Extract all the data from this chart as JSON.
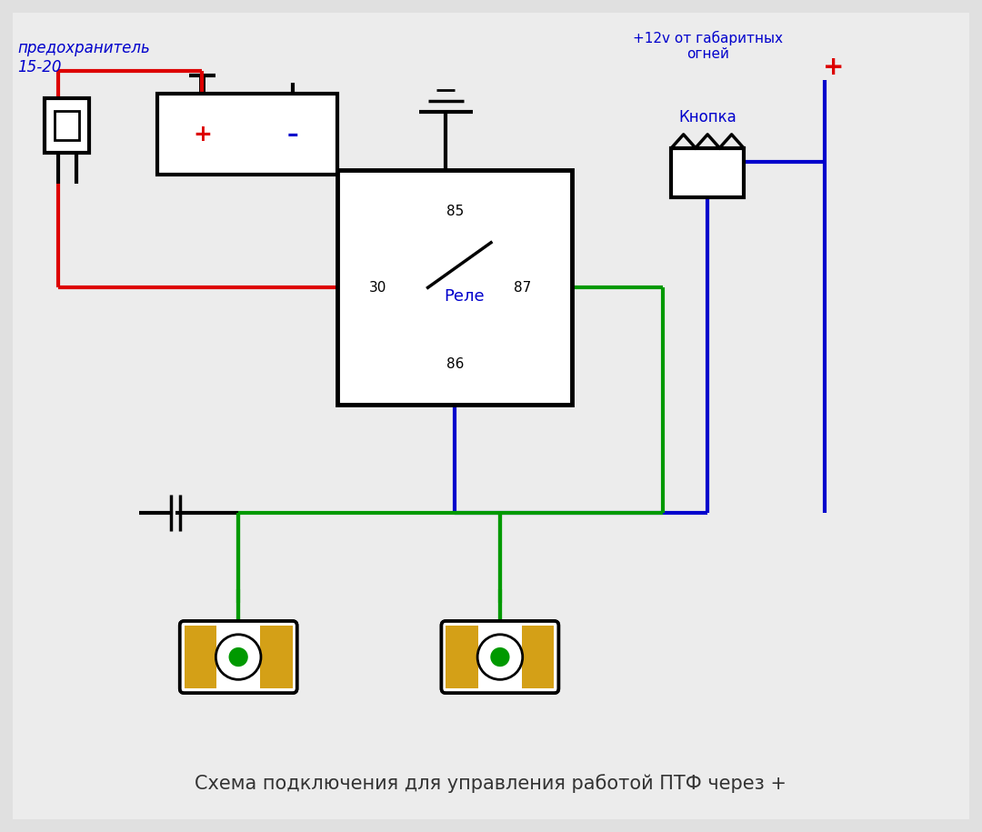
{
  "bg_color": "#e8e8e8",
  "title_text": "Схема подключения для управления работой ПТФ через +",
  "title_color": "#333333",
  "title_fontsize": 15,
  "label_predohranitel": "предохранитель\n15-20",
  "label_klopka_top": "+12v от габаритных\nогней",
  "label_knopka": "Кнопка",
  "label_relay": "Реле",
  "label_85": "85",
  "label_86": "86",
  "label_30": "30",
  "label_87": "87",
  "label_plus_knopka": "+",
  "colors": {
    "red": "#dd0000",
    "blue": "#0000cc",
    "green": "#009900",
    "black": "#000000",
    "orange": "#D4A017",
    "white": "#ffffff",
    "bg": "#e0e0e0"
  }
}
